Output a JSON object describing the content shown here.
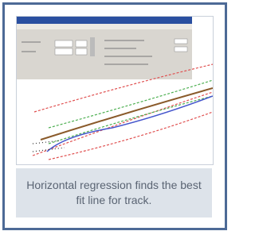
{
  "card": {
    "caption": "Horizontal regression finds the best fit line for track."
  }
}
